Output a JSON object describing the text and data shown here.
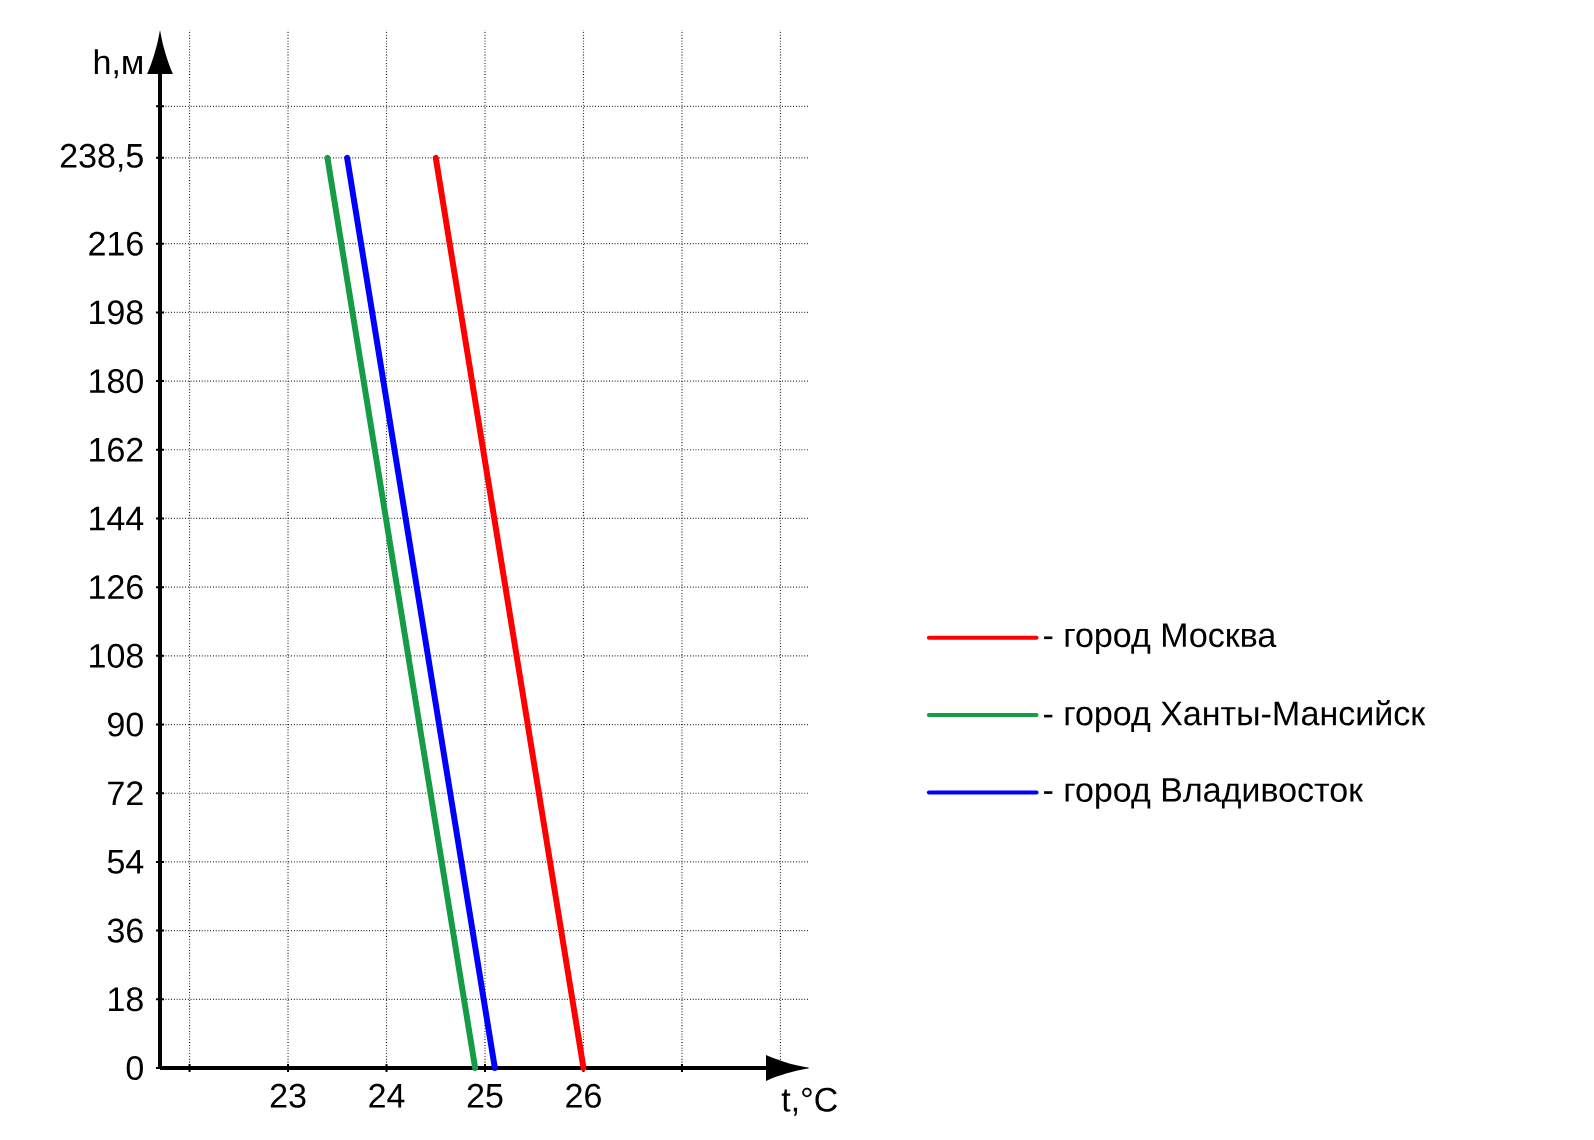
{
  "chart_data": {
    "type": "line",
    "xlabel": "t,°C",
    "ylabel": "h,м",
    "xlim": [
      21.7,
      28.3
    ],
    "ylim": [
      0,
      272
    ],
    "xticks": [
      {
        "value": 22,
        "label": null
      },
      23,
      24,
      25,
      26,
      {
        "value": 27,
        "label": null
      },
      {
        "value": 28,
        "label": null
      }
    ],
    "yticks": [
      0,
      18,
      36,
      54,
      72,
      90,
      108,
      126,
      144,
      162,
      180,
      198,
      216,
      {
        "value": 238.5,
        "label": "238,5"
      },
      {
        "value": 252,
        "label": null
      }
    ],
    "grid": true,
    "legend": "right",
    "line_style": "solid",
    "marker": "none",
    "series": [
      {
        "name": "- город Москва",
        "color": "#ff0000",
        "x": [
          24.5,
          26.0
        ],
        "values": [
          238.5,
          0
        ]
      },
      {
        "name": "- город Ханты-Мансийск",
        "color": "#169c45",
        "x": [
          23.4,
          24.9
        ],
        "values": [
          238.5,
          0
        ]
      },
      {
        "name": "- город Владивосток",
        "color": "#0000ff",
        "x": [
          23.6,
          25.1
        ],
        "values": [
          238.5,
          0
        ]
      }
    ]
  }
}
